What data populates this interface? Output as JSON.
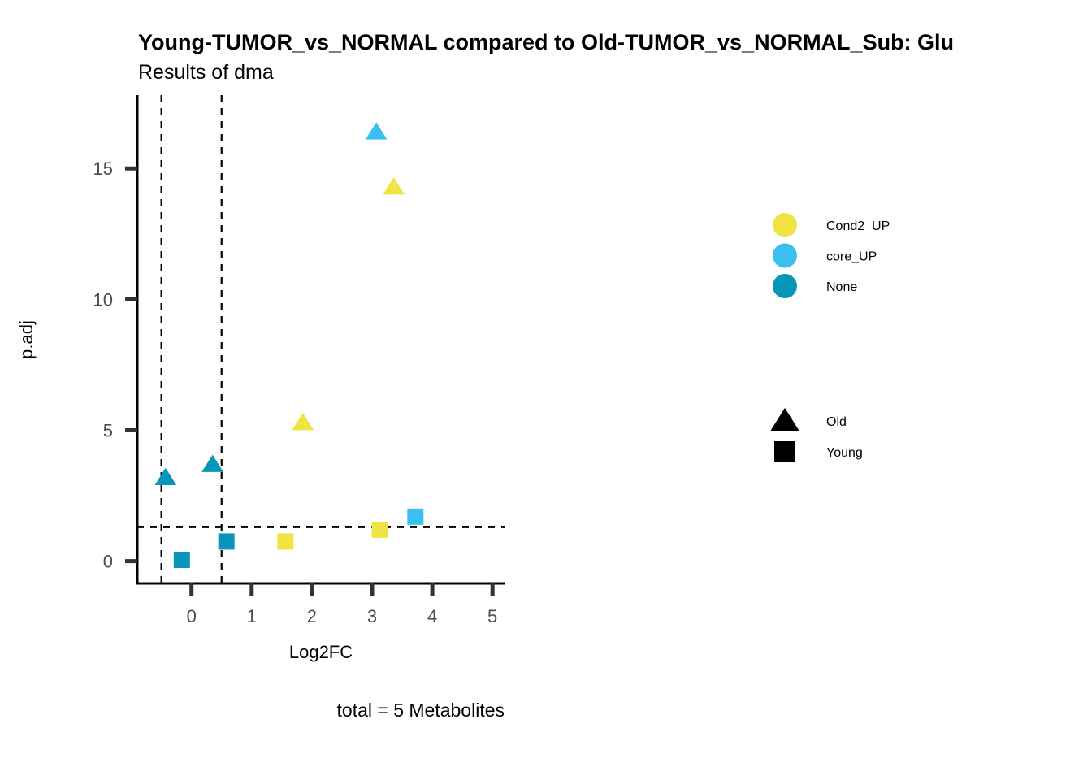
{
  "chart_data": {
    "type": "scatter",
    "title": "Young-TUMOR_vs_NORMAL compared to Old-TUMOR_vs_NORMAL_Sub: Glu",
    "subtitle": "Results of dma",
    "xlabel": "Log2FC",
    "ylabel": "p.adj",
    "caption": "total = 5 Metabolites",
    "xlim": [
      -0.9,
      5.2
    ],
    "ylim": [
      -0.85,
      17.8
    ],
    "x_ticks": [
      0,
      1,
      2,
      3,
      4,
      5
    ],
    "y_ticks": [
      0,
      5,
      10,
      15
    ],
    "grid": false,
    "reference_lines": {
      "vertical": [
        -0.5,
        0.5
      ],
      "horizontal": [
        1.3
      ]
    },
    "color_legend": {
      "placement": "right",
      "entries": [
        {
          "label": "Cond2_UP",
          "color": "#F0E442"
        },
        {
          "label": "core_UP",
          "color": "#3BBFEE"
        },
        {
          "label": "None",
          "color": "#0796B8"
        }
      ]
    },
    "shape_legend": {
      "placement": "right",
      "entries": [
        {
          "label": "Old",
          "shape": "triangle"
        },
        {
          "label": "Young",
          "shape": "square"
        }
      ]
    },
    "points": [
      {
        "x": 3.07,
        "y": 16.4,
        "group": "core_UP",
        "condition": "Old"
      },
      {
        "x": 3.36,
        "y": 14.3,
        "group": "Cond2_UP",
        "condition": "Old"
      },
      {
        "x": 1.85,
        "y": 5.3,
        "group": "Cond2_UP",
        "condition": "Old"
      },
      {
        "x": 0.35,
        "y": 3.7,
        "group": "None",
        "condition": "Old"
      },
      {
        "x": -0.43,
        "y": 3.2,
        "group": "None",
        "condition": "Old"
      },
      {
        "x": -0.16,
        "y": 0.05,
        "group": "None",
        "condition": "Young"
      },
      {
        "x": 0.58,
        "y": 0.75,
        "group": "None",
        "condition": "Young"
      },
      {
        "x": 1.56,
        "y": 0.75,
        "group": "Cond2_UP",
        "condition": "Young"
      },
      {
        "x": 3.13,
        "y": 1.2,
        "group": "Cond2_UP",
        "condition": "Young"
      },
      {
        "x": 3.72,
        "y": 1.7,
        "group": "core_UP",
        "condition": "Young"
      }
    ]
  }
}
